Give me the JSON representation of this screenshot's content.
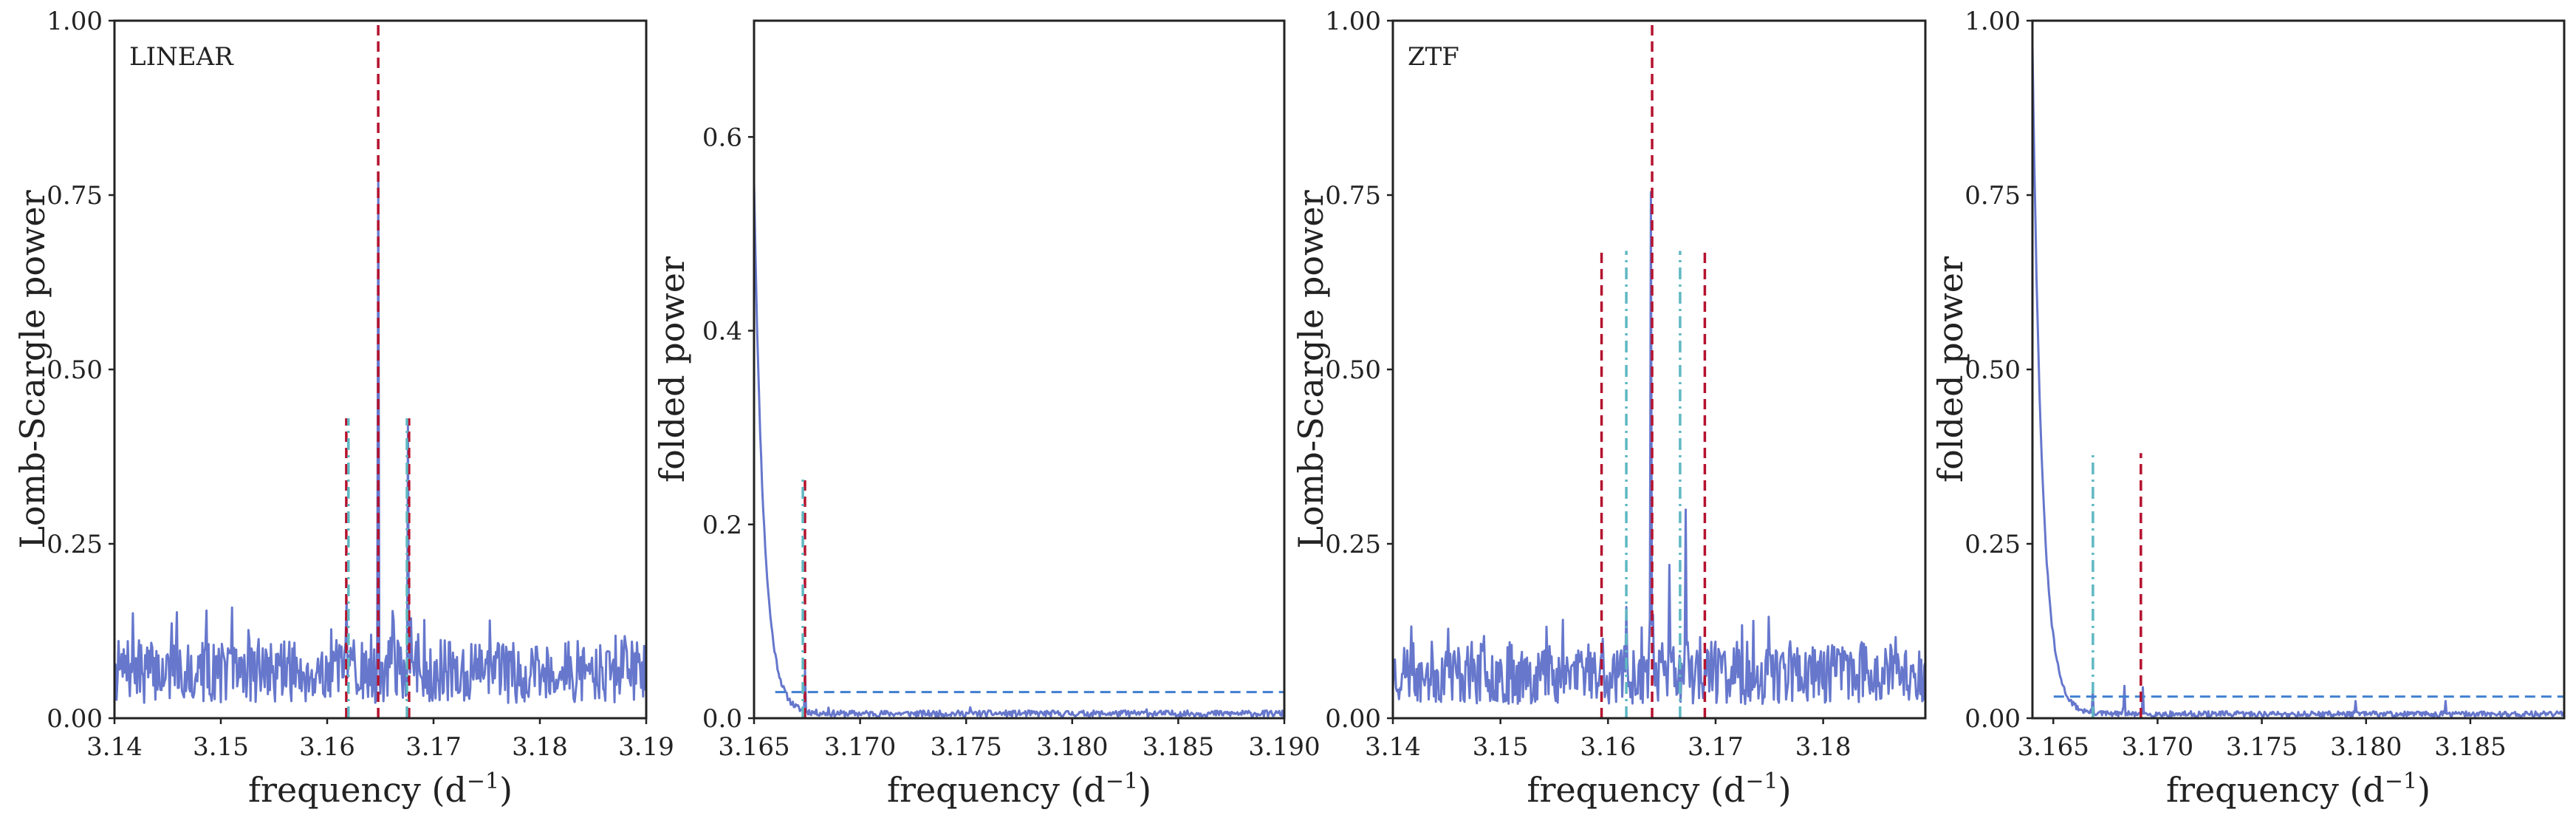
{
  "colors": {
    "series": "#6677cc",
    "red": "#b5122e",
    "cyan": "#5fb8c2",
    "threshold": "#3f7fd0"
  },
  "chart_data": [
    {
      "type": "line",
      "panel_label": "LINEAR",
      "ylabel": "Lomb-Scargle power",
      "xlabel": "frequency (d^-1)",
      "xlim": [
        3.14,
        3.19
      ],
      "ylim": [
        0,
        1
      ],
      "xticks": [
        "3.14",
        "3.15",
        "3.16",
        "3.17",
        "3.18",
        "3.19"
      ],
      "yticks": [
        "0.00",
        "0.25",
        "0.50",
        "0.75",
        "1.00"
      ],
      "series_style": "noise",
      "series": {
        "noise_base": 0.055,
        "noise_amp": 0.09,
        "seed": 7,
        "peaks": [
          [
            3.1417,
            0.19
          ],
          [
            3.1618,
            0.2
          ],
          [
            3.1648,
            0.78
          ],
          [
            3.1662,
            0.26
          ],
          [
            3.1676,
            0.42
          ],
          [
            3.1688,
            0.1
          ]
        ]
      },
      "vlines": [
        {
          "x": 3.1648,
          "ymax": 1.0,
          "color": "red",
          "style": "dashed"
        },
        {
          "x": 3.1618,
          "ymax": 0.43,
          "color": "red",
          "style": "dashed"
        },
        {
          "x": 3.1677,
          "ymax": 0.43,
          "color": "red",
          "style": "dashed"
        },
        {
          "x": 3.162,
          "ymax": 0.43,
          "color": "cyan",
          "style": "dashdot"
        },
        {
          "x": 3.1675,
          "ymax": 0.43,
          "color": "cyan",
          "style": "dashdot"
        }
      ]
    },
    {
      "type": "line",
      "panel_label": "",
      "ylabel": "folded power",
      "xlabel": "frequency (d^-1)",
      "xlim": [
        3.165,
        3.19
      ],
      "ylim": [
        0,
        0.72
      ],
      "xticks": [
        "3.165",
        "3.170",
        "3.175",
        "3.180",
        "3.185",
        "3.190"
      ],
      "yticks": [
        "0.0",
        "0.2",
        "0.4",
        "0.6"
      ],
      "series_style": "decay",
      "series": {
        "start": 0.55,
        "tail": 0.004,
        "seed": 11,
        "peaks": [
          [
            3.1674,
            0.05
          ],
          [
            3.1685,
            0.012
          ],
          [
            3.1752,
            0.012
          ],
          [
            3.1825,
            0.008
          ],
          [
            3.1835,
            0.01
          ]
        ]
      },
      "threshold": 0.027,
      "vlines": [
        {
          "x": 3.1674,
          "ymax": 0.25,
          "color": "red",
          "style": "dashed"
        },
        {
          "x": 3.1673,
          "ymax": 0.25,
          "color": "cyan",
          "style": "dashdot"
        }
      ]
    },
    {
      "type": "line",
      "panel_label": "ZTF",
      "ylabel": "Lomb-Scargle power",
      "xlabel": "frequency (d^-1)",
      "xlim": [
        3.14,
        3.1895
      ],
      "ylim": [
        0,
        1
      ],
      "xticks": [
        "3.14",
        "3.15",
        "3.16",
        "3.17",
        "3.18"
      ],
      "yticks": [
        "0.00",
        "0.25",
        "0.50",
        "0.75",
        "1.00"
      ],
      "series_style": "noise",
      "series": {
        "noise_base": 0.05,
        "noise_amp": 0.09,
        "seed": 23,
        "peaks": [
          [
            3.1595,
            0.12
          ],
          [
            3.1617,
            0.16
          ],
          [
            3.164,
            0.78
          ],
          [
            3.1657,
            0.22
          ],
          [
            3.1672,
            0.35
          ],
          [
            3.169,
            0.11
          ]
        ]
      },
      "vlines": [
        {
          "x": 3.1641,
          "ymax": 1.0,
          "color": "red",
          "style": "dashed"
        },
        {
          "x": 3.1594,
          "ymax": 0.67,
          "color": "red",
          "style": "dashed"
        },
        {
          "x": 3.169,
          "ymax": 0.67,
          "color": "red",
          "style": "dashed"
        },
        {
          "x": 3.1617,
          "ymax": 0.67,
          "color": "cyan",
          "style": "dashdot"
        },
        {
          "x": 3.1667,
          "ymax": 0.67,
          "color": "cyan",
          "style": "dashdot"
        }
      ]
    },
    {
      "type": "line",
      "panel_label": "",
      "ylabel": "folded power",
      "xlabel": "frequency (d^-1)",
      "xlim": [
        3.164,
        3.1895
      ],
      "ylim": [
        0,
        1
      ],
      "xticks": [
        "3.165",
        "3.170",
        "3.175",
        "3.180",
        "3.185"
      ],
      "yticks": [
        "0.00",
        "0.25",
        "0.50",
        "0.75",
        "1.00"
      ],
      "series_style": "decay",
      "series": {
        "start": 0.96,
        "tail": 0.005,
        "seed": 31,
        "peaks": [
          [
            3.1669,
            0.04
          ],
          [
            3.1684,
            0.055
          ],
          [
            3.1693,
            0.045
          ],
          [
            3.1795,
            0.025
          ],
          [
            3.1838,
            0.028
          ]
        ]
      },
      "threshold": 0.031,
      "vlines": [
        {
          "x": 3.1669,
          "ymax": 0.38,
          "color": "cyan",
          "style": "dashdot"
        },
        {
          "x": 3.1692,
          "ymax": 0.38,
          "color": "red",
          "style": "dashed"
        }
      ]
    }
  ]
}
